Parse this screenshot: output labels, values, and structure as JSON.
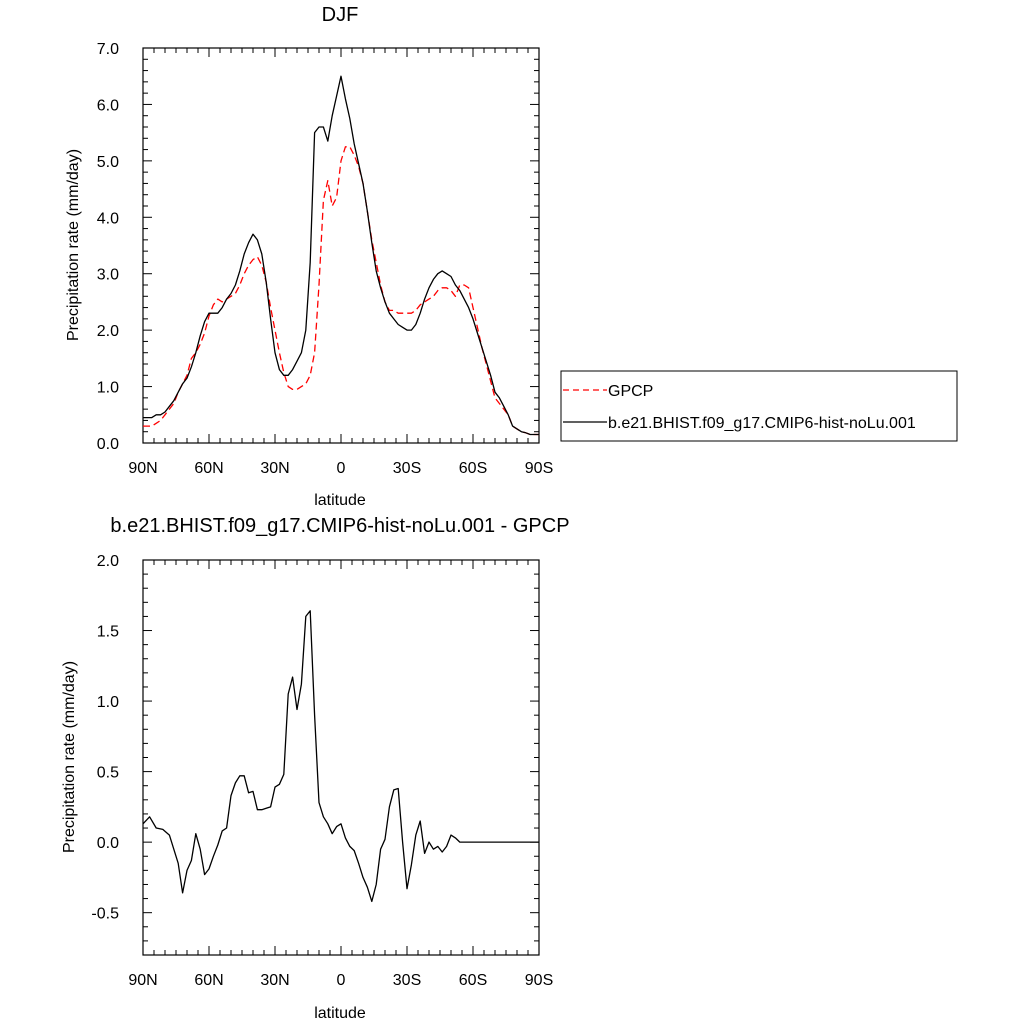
{
  "chart_data": [
    {
      "type": "line",
      "title": "DJF",
      "xlabel": "latitude",
      "ylabel": "Precipitation rate (mm/day)",
      "xlim": [
        90,
        -90
      ],
      "ylim": [
        0,
        7
      ],
      "x_ticks": [
        {
          "value": 90,
          "label": "90N"
        },
        {
          "value": 60,
          "label": "60N"
        },
        {
          "value": 30,
          "label": "30N"
        },
        {
          "value": 0,
          "label": "0"
        },
        {
          "value": -30,
          "label": "30S"
        },
        {
          "value": -60,
          "label": "60S"
        },
        {
          "value": -90,
          "label": "90S"
        }
      ],
      "y_ticks": [
        {
          "value": 0,
          "label": "0.0"
        },
        {
          "value": 1,
          "label": "1.0"
        },
        {
          "value": 2,
          "label": "2.0"
        },
        {
          "value": 3,
          "label": "3.0"
        },
        {
          "value": 4,
          "label": "4.0"
        },
        {
          "value": 5,
          "label": "5.0"
        },
        {
          "value": 6,
          "label": "6.0"
        },
        {
          "value": 7,
          "label": "7.0"
        }
      ],
      "legend_position": "right",
      "series": [
        {
          "name": "GPCP",
          "color": "#ff0000",
          "dash": "dashed",
          "x": [
            90,
            88,
            86,
            84,
            82,
            80,
            78,
            76,
            74,
            72,
            70,
            68,
            66,
            64,
            62,
            60,
            58,
            56,
            54,
            52,
            50,
            48,
            46,
            44,
            42,
            40,
            38,
            36,
            34,
            32,
            30,
            28,
            26,
            24,
            22,
            20,
            18,
            16,
            14,
            12,
            10,
            8,
            6,
            4,
            2,
            0,
            -2,
            -4,
            -6,
            -8,
            -10,
            -12,
            -14,
            -16,
            -18,
            -20,
            -22,
            -24,
            -26,
            -28,
            -30,
            -32,
            -34,
            -36,
            -38,
            -40,
            -42,
            -44,
            -46,
            -48,
            -50,
            -52,
            -54,
            -56,
            -58,
            -60,
            -62,
            -64,
            -66,
            -68,
            -70,
            -72,
            -74,
            -76,
            -78,
            -80,
            -82,
            -84,
            -86,
            -88,
            -90
          ],
          "y": [
            0.3,
            0.3,
            0.3,
            0.35,
            0.4,
            0.5,
            0.6,
            0.7,
            0.9,
            1.05,
            1.2,
            1.5,
            1.6,
            1.75,
            1.95,
            2.25,
            2.45,
            2.55,
            2.5,
            2.55,
            2.6,
            2.65,
            2.8,
            3.0,
            3.15,
            3.25,
            3.3,
            3.15,
            2.85,
            2.4,
            2.0,
            1.6,
            1.25,
            1.0,
            0.95,
            0.95,
            1.0,
            1.05,
            1.2,
            1.6,
            2.8,
            4.3,
            4.65,
            4.2,
            4.35,
            5.0,
            5.25,
            5.25,
            5.1,
            4.9,
            4.6,
            4.1,
            3.6,
            3.2,
            2.8,
            2.5,
            2.35,
            2.35,
            2.3,
            2.3,
            2.3,
            2.3,
            2.35,
            2.45,
            2.5,
            2.55,
            2.6,
            2.7,
            2.75,
            2.75,
            2.7,
            2.6,
            2.8,
            2.8,
            2.75,
            2.4,
            2.05,
            1.7,
            1.4,
            1.1,
            0.8,
            0.7,
            0.6,
            0.5,
            0.3,
            0.25,
            0.2,
            0.18,
            0.15,
            0.15,
            0.15
          ]
        },
        {
          "name": "b.e21.BHIST.f09_g17.CMIP6-hist-noLu.001",
          "color": "#000000",
          "dash": "solid",
          "x": [
            90,
            88,
            86,
            84,
            82,
            80,
            78,
            76,
            74,
            72,
            70,
            68,
            66,
            64,
            62,
            60,
            58,
            56,
            54,
            52,
            50,
            48,
            46,
            44,
            42,
            40,
            38,
            36,
            34,
            32,
            30,
            28,
            26,
            24,
            22,
            20,
            18,
            16,
            14,
            12,
            10,
            8,
            6,
            4,
            2,
            0,
            -2,
            -4,
            -6,
            -8,
            -10,
            -12,
            -14,
            -16,
            -18,
            -20,
            -22,
            -24,
            -26,
            -28,
            -30,
            -32,
            -34,
            -36,
            -38,
            -40,
            -42,
            -44,
            -46,
            -48,
            -50,
            -52,
            -54,
            -56,
            -58,
            -60,
            -62,
            -64,
            -66,
            -68,
            -70,
            -72,
            -74,
            -76,
            -78,
            -80,
            -82,
            -84,
            -86,
            -88,
            -90
          ],
          "y": [
            0.45,
            0.45,
            0.45,
            0.5,
            0.5,
            0.55,
            0.65,
            0.75,
            0.9,
            1.05,
            1.15,
            1.35,
            1.6,
            1.9,
            2.15,
            2.3,
            2.3,
            2.3,
            2.4,
            2.55,
            2.65,
            2.8,
            3.05,
            3.35,
            3.55,
            3.7,
            3.6,
            3.35,
            2.85,
            2.2,
            1.6,
            1.3,
            1.2,
            1.2,
            1.3,
            1.45,
            1.6,
            2.0,
            3.2,
            5.5,
            5.6,
            5.6,
            5.35,
            5.8,
            6.15,
            6.5,
            6.1,
            5.75,
            5.3,
            4.95,
            4.6,
            4.1,
            3.55,
            3.05,
            2.75,
            2.5,
            2.3,
            2.2,
            2.1,
            2.05,
            2.0,
            2.0,
            2.1,
            2.3,
            2.55,
            2.75,
            2.9,
            3.0,
            3.05,
            3.0,
            2.95,
            2.8,
            2.7,
            2.55,
            2.4,
            2.2,
            1.95,
            1.7,
            1.45,
            1.2,
            0.9,
            0.8,
            0.65,
            0.5,
            0.3,
            0.25,
            0.2,
            0.18,
            0.15,
            0.15,
            0.15
          ]
        }
      ]
    },
    {
      "type": "line",
      "title": "b.e21.BHIST.f09_g17.CMIP6-hist-noLu.001 - GPCP",
      "xlabel": "latitude",
      "ylabel": "Precipitation rate (mm/day)",
      "xlim": [
        90,
        -90
      ],
      "ylim": [
        -0.8,
        2.0
      ],
      "x_ticks": [
        {
          "value": 90,
          "label": "90N"
        },
        {
          "value": 60,
          "label": "60N"
        },
        {
          "value": 30,
          "label": "30N"
        },
        {
          "value": 0,
          "label": "0"
        },
        {
          "value": -30,
          "label": "30S"
        },
        {
          "value": -60,
          "label": "60S"
        },
        {
          "value": -90,
          "label": "90S"
        }
      ],
      "y_ticks": [
        {
          "value": -0.5,
          "label": "-0.5"
        },
        {
          "value": 0,
          "label": "0.0"
        },
        {
          "value": 0.5,
          "label": "0.5"
        },
        {
          "value": 1.0,
          "label": "1.0"
        },
        {
          "value": 1.5,
          "label": "1.5"
        },
        {
          "value": 2.0,
          "label": "2.0"
        }
      ],
      "series": [
        {
          "color": "#000000",
          "dash": "solid",
          "x": [
            90,
            87,
            84,
            81,
            78,
            76,
            74,
            72,
            70,
            68,
            66,
            64,
            62,
            60,
            58,
            56,
            54,
            52,
            50,
            48,
            46,
            44,
            42,
            40,
            38,
            36,
            34,
            32,
            30,
            28,
            26,
            24,
            22,
            20,
            18,
            16,
            14,
            12,
            10,
            8,
            6,
            4,
            2,
            0,
            -2,
            -4,
            -6,
            -8,
            -10,
            -12,
            -14,
            -16,
            -18,
            -20,
            -22,
            -24,
            -26,
            -28,
            -30,
            -32,
            -34,
            -36,
            -38,
            -40,
            -42,
            -44,
            -46,
            -48,
            -50,
            -52,
            -54,
            -56,
            -58,
            -60,
            -62,
            -64,
            -66,
            -68,
            -70,
            -72,
            -74,
            -76,
            -78,
            -80,
            -82,
            -84,
            -86,
            -88,
            -90
          ],
          "y": [
            0.13,
            0.18,
            0.1,
            0.09,
            0.05,
            -0.05,
            -0.15,
            -0.36,
            -0.2,
            -0.13,
            0.06,
            -0.05,
            -0.23,
            -0.19,
            -0.1,
            -0.02,
            0.08,
            0.1,
            0.33,
            0.42,
            0.47,
            0.47,
            0.35,
            0.36,
            0.23,
            0.23,
            0.24,
            0.25,
            0.39,
            0.41,
            0.48,
            1.05,
            1.17,
            0.94,
            1.12,
            1.6,
            1.64,
            0.9,
            0.28,
            0.18,
            0.13,
            0.06,
            0.11,
            0.13,
            0.03,
            -0.03,
            -0.06,
            -0.15,
            -0.25,
            -0.32,
            -0.42,
            -0.3,
            -0.05,
            0.02,
            0.25,
            0.37,
            0.38,
            0.0,
            -0.33,
            -0.16,
            0.05,
            0.15,
            -0.08,
            0.0,
            -0.05,
            -0.03,
            -0.07,
            -0.03,
            0.05,
            0.03,
            0.0,
            0.0,
            0.0,
            0.0,
            0.0,
            0.0,
            0.0,
            0.0,
            0.0,
            0.0,
            0.0,
            0.0,
            0.0,
            0.0,
            0.0,
            0.0,
            0.0,
            0.0,
            0.0
          ]
        }
      ]
    }
  ]
}
